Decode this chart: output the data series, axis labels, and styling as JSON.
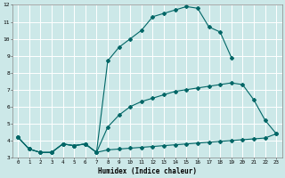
{
  "xlabel": "Humidex (Indice chaleur)",
  "bg_color": "#cce8e8",
  "grid_color": "#ffffff",
  "line_color": "#006666",
  "line1_x": [
    0,
    1,
    2,
    3,
    4,
    5,
    6,
    7,
    8,
    9,
    10,
    11,
    12,
    13,
    14,
    15,
    16,
    17,
    18,
    19
  ],
  "line1_y": [
    4.2,
    3.5,
    3.3,
    3.3,
    3.8,
    3.7,
    3.8,
    3.3,
    8.7,
    9.5,
    10.0,
    10.5,
    11.3,
    11.5,
    11.7,
    11.9,
    11.8,
    10.7,
    10.4,
    8.9
  ],
  "line2_x": [
    0,
    1,
    2,
    3,
    4,
    5,
    6,
    7,
    8,
    9,
    10,
    11,
    12,
    13,
    14,
    15,
    16,
    17,
    18,
    19,
    20,
    21,
    22,
    23
  ],
  "line2_y": [
    4.2,
    3.5,
    3.3,
    3.3,
    3.8,
    3.7,
    3.8,
    3.3,
    4.8,
    5.5,
    6.0,
    6.3,
    6.5,
    6.7,
    6.9,
    7.0,
    7.1,
    7.2,
    7.3,
    7.4,
    7.3,
    6.4,
    5.2,
    4.4
  ],
  "line3_x": [
    0,
    1,
    2,
    3,
    4,
    5,
    6,
    7,
    8,
    9,
    10,
    11,
    12,
    13,
    14,
    15,
    16,
    17,
    18,
    19,
    20,
    21,
    22,
    23
  ],
  "line3_y": [
    4.2,
    3.5,
    3.3,
    3.3,
    3.8,
    3.7,
    3.8,
    3.3,
    3.45,
    3.5,
    3.55,
    3.6,
    3.65,
    3.7,
    3.75,
    3.8,
    3.85,
    3.9,
    3.95,
    4.0,
    4.05,
    4.1,
    4.15,
    4.4
  ],
  "xlim": [
    -0.5,
    23.5
  ],
  "ylim": [
    3,
    12
  ],
  "xticks": [
    0,
    1,
    2,
    3,
    4,
    5,
    6,
    7,
    8,
    9,
    10,
    11,
    12,
    13,
    14,
    15,
    16,
    17,
    18,
    19,
    20,
    21,
    22,
    23
  ],
  "yticks": [
    3,
    4,
    5,
    6,
    7,
    8,
    9,
    10,
    11,
    12
  ]
}
